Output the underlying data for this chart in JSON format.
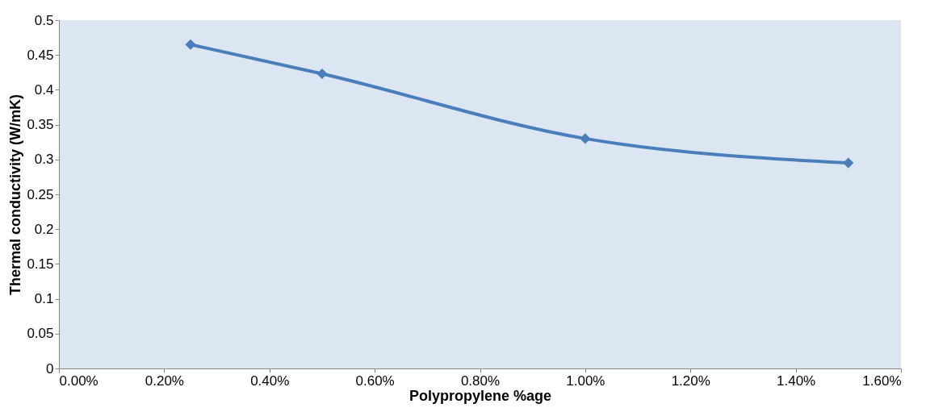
{
  "chart_data": {
    "type": "line",
    "xlabel": "Polypropylene %age",
    "ylabel": "Thermal conductivity (W/mK)",
    "xlim": [
      0,
      1.6
    ],
    "ylim": [
      0,
      0.5
    ],
    "xticks": [
      {
        "value": 0,
        "label": "0.00%"
      },
      {
        "value": 0.2,
        "label": "0.20%"
      },
      {
        "value": 0.4,
        "label": "0.40%"
      },
      {
        "value": 0.6,
        "label": "0.60%"
      },
      {
        "value": 0.8,
        "label": "0.80%"
      },
      {
        "value": 1.0,
        "label": "1.00%"
      },
      {
        "value": 1.2,
        "label": "1.20%"
      },
      {
        "value": 1.4,
        "label": "1.40%"
      },
      {
        "value": 1.6,
        "label": "1.60%"
      }
    ],
    "yticks": [
      0,
      0.05,
      0.1,
      0.15,
      0.2,
      0.25,
      0.3,
      0.35,
      0.4,
      0.45,
      0.5
    ],
    "x": [
      0.25,
      0.5,
      1.0,
      1.5
    ],
    "series": [
      {
        "color": "#4a7ebb",
        "values": [
          0.465,
          0.423,
          0.33,
          0.295
        ]
      }
    ],
    "grid": false,
    "marker": "diamond",
    "line_style": "solid"
  }
}
